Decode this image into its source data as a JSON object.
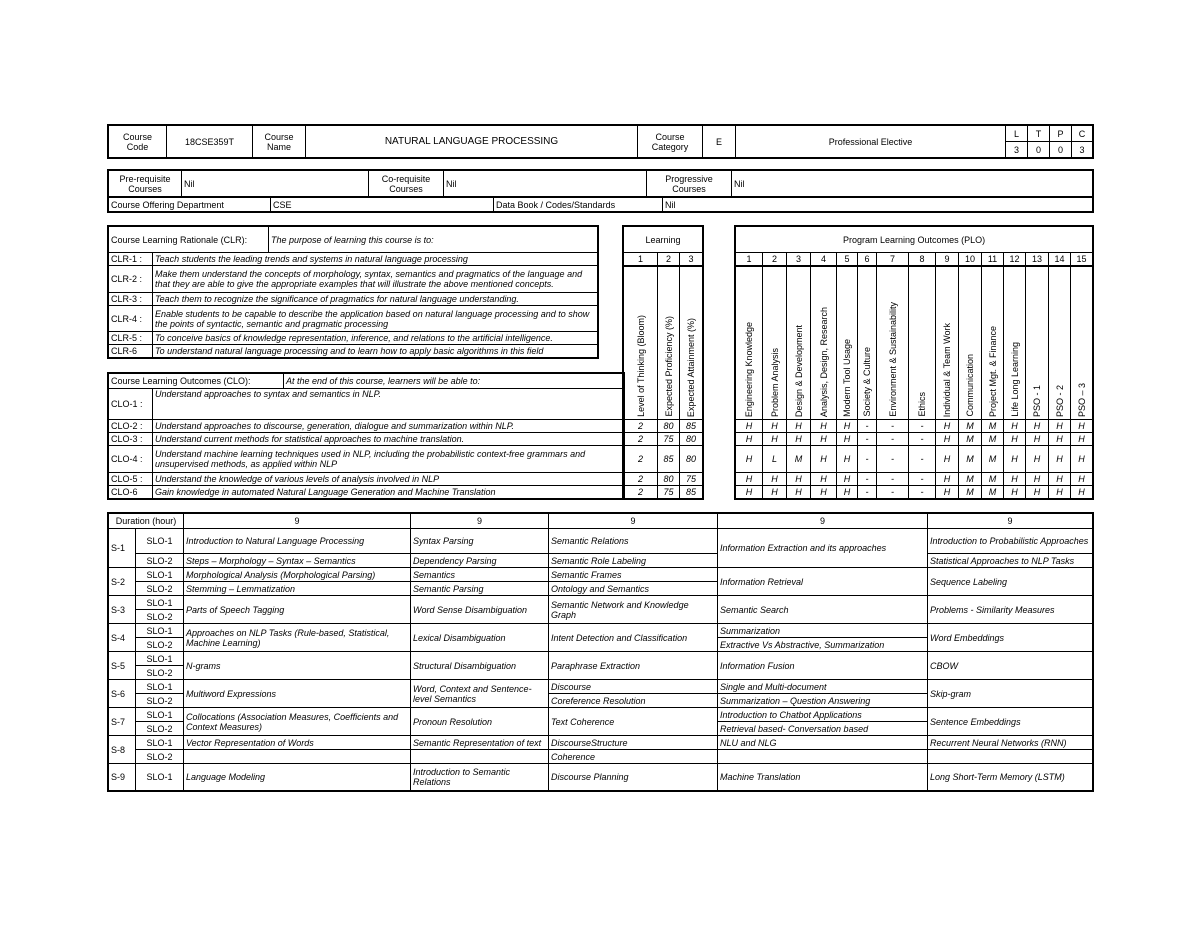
{
  "header": {
    "course_code_label": "Course Code",
    "course_code": "18CSE359T",
    "course_name_label": "Course Name",
    "course_name": "NATURAL LANGUAGE PROCESSING",
    "course_category_label": "Course Category",
    "category_code": "E",
    "category": "Professional Elective",
    "ltpc_labels": [
      "L",
      "T",
      "P",
      "C"
    ],
    "ltpc_values": [
      "3",
      "0",
      "0",
      "3"
    ]
  },
  "prereq": {
    "pre_label": "Pre-requisite Courses",
    "pre_value": "Nil",
    "co_label": "Co-requisite Courses",
    "co_value": "Nil",
    "prog_label": "Progressive Courses",
    "prog_value": "Nil",
    "dept_label": "Course Offering Department",
    "dept_value": "CSE",
    "databook_label": "Data Book / Codes/Standards",
    "databook_value": "Nil"
  },
  "clr": {
    "heading": "Course Learning Rationale (CLR):",
    "intro": "The purpose of learning this course is to:",
    "items": [
      {
        "label": "CLR-1 :",
        "text": "Teach students the leading trends and systems in natural language processing"
      },
      {
        "label": "CLR-2 :",
        "text": "Make them understand the concepts of morphology, syntax, semantics and pragmatics of the language and that they are able to give the appropriate examples that will illustrate the above mentioned concepts."
      },
      {
        "label": "CLR-3 :",
        "text": "Teach them to recognize the significance of pragmatics for natural language understanding."
      },
      {
        "label": "CLR-4 :",
        "text": "Enable students to be capable to describe the application based on natural language processing and to show the points of syntactic, semantic and pragmatic processing"
      },
      {
        "label": "CLR-5 :",
        "text": "To conceive basics of knowledge representation, inference, and relations to the artificial intelligence."
      },
      {
        "label": "CLR-6",
        "text": "To understand natural language processing and to learn how to apply basic algorithms in this field"
      }
    ]
  },
  "clo": {
    "heading": "Course Learning Outcomes (CLO):",
    "intro": "At the end of this course, learners will be able to:",
    "items": [
      {
        "label": "CLO-1 :",
        "text": "Understand approaches to syntax and semantics in NLP."
      },
      {
        "label": "CLO-2 :",
        "text": "Understand approaches to discourse, generation, dialogue and summarization within NLP."
      },
      {
        "label": "CLO-3 :",
        "text": "Understand current methods for statistical approaches to machine translation."
      },
      {
        "label": "CLO-4 :",
        "text": "Understand machine learning techniques used in NLP, including the probabilistic context-free grammars and unsupervised methods, as applied within NLP"
      },
      {
        "label": "CLO-5 :",
        "text": "Understand the knowledge of various levels of analysis involved in NLP"
      },
      {
        "label": "CLO-6",
        "text": "Gain knowledge in automated Natural Language Generation and Machine Translation"
      }
    ]
  },
  "learning": {
    "title": "Learning",
    "numbers": [
      "1",
      "2",
      "3"
    ],
    "headers": [
      "Level of Thinking (Bloom)",
      "Expected Proficiency (%)",
      "Expected Attainment (%)"
    ],
    "values": [
      [
        "2",
        "80",
        "85"
      ],
      [
        "2",
        "75",
        "80"
      ],
      [
        "2",
        "85",
        "80"
      ],
      [
        "2",
        "80",
        "75"
      ],
      [
        "2",
        "75",
        "85"
      ]
    ]
  },
  "plo": {
    "title": "Program Learning Outcomes (PLO)",
    "numbers": [
      "1",
      "2",
      "3",
      "4",
      "5",
      "6",
      "7",
      "8",
      "9",
      "10",
      "11",
      "12",
      "13",
      "14",
      "15"
    ],
    "headers": [
      "Engineering Knowledge",
      "Problem Analysis",
      "Design & Development",
      "Analysis, Design, Research",
      "Modern Tool Usage",
      "Society & Culture",
      "Environment & Sustainability",
      "Ethics",
      "Individual & Team Work",
      "Communication",
      "Project Mgt. & Finance",
      "Life Long Learning",
      "PSO - 1",
      "PSO - 2",
      "PSO – 3"
    ],
    "values": [
      [
        "H",
        "H",
        "H",
        "H",
        "H",
        "-",
        "-",
        "-",
        "H",
        "M",
        "M",
        "H",
        "H",
        "H",
        "H"
      ],
      [
        "H",
        "H",
        "H",
        "H",
        "H",
        "-",
        "-",
        "-",
        "H",
        "M",
        "M",
        "H",
        "H",
        "H",
        "H"
      ],
      [
        "H",
        "L",
        "M",
        "H",
        "H",
        "-",
        "-",
        "-",
        "H",
        "M",
        "M",
        "H",
        "H",
        "H",
        "H"
      ],
      [
        "H",
        "H",
        "H",
        "H",
        "H",
        "-",
        "-",
        "-",
        "H",
        "M",
        "M",
        "H",
        "H",
        "H",
        "H"
      ],
      [
        "H",
        "H",
        "H",
        "H",
        "H",
        "-",
        "-",
        "-",
        "H",
        "M",
        "M",
        "H",
        "H",
        "H",
        "H"
      ]
    ]
  },
  "schedule": {
    "duration_label": "Duration (hour)",
    "durations": [
      "9",
      "9",
      "9",
      "9",
      "9"
    ],
    "sessions": [
      {
        "label": "S-1",
        "slos": [
          "SLO-1",
          "SLO-2"
        ],
        "cells": [
          [
            "Introduction to Natural Language Processing",
            "Steps – Morphology – Syntax – Semantics"
          ],
          [
            "Syntax Parsing",
            "Dependency Parsing"
          ],
          [
            "Semantic Relations",
            "Semantic Role Labeling"
          ],
          "Information Extraction and its approaches",
          [
            "Introduction to Probabilistic Approaches",
            "Statistical Approaches to NLP Tasks"
          ]
        ]
      },
      {
        "label": "S-2",
        "slos": [
          "SLO-1",
          "SLO-2"
        ],
        "cells": [
          [
            "Morphological Analysis (Morphological Parsing)",
            "Stemming – Lemmatization"
          ],
          [
            "Semantics",
            "Semantic Parsing"
          ],
          [
            "Semantic Frames",
            "Ontology and Semantics"
          ],
          "Information Retrieval",
          "Sequence Labeling"
        ]
      },
      {
        "label": "S-3",
        "slos": [
          "SLO-1",
          "SLO-2"
        ],
        "cells": [
          "Parts of Speech Tagging",
          "Word Sense Disambiguation",
          "Semantic Network and Knowledge Graph",
          "Semantic Search",
          "Problems - Similarity Measures"
        ]
      },
      {
        "label": "S-4",
        "slos": [
          "SLO-1",
          "SLO-2"
        ],
        "cells": [
          "Approaches on NLP Tasks (Rule-based, Statistical, Machine Learning)",
          "Lexical Disambiguation",
          "Intent Detection and Classification",
          [
            "Summarization",
            "Extractive Vs Abstractive, Summarization"
          ],
          "Word Embeddings"
        ]
      },
      {
        "label": "S-5",
        "slos": [
          "SLO-1",
          "SLO-2"
        ],
        "cells": [
          "N-grams",
          "Structural Disambiguation",
          "Paraphrase Extraction",
          "Information Fusion",
          "CBOW"
        ]
      },
      {
        "label": "S-6",
        "slos": [
          "SLO-1",
          "SLO-2"
        ],
        "cells": [
          "Multiword Expressions",
          "Word, Context and Sentence-level Semantics",
          [
            "Discourse",
            "Coreference Resolution"
          ],
          [
            "Single and Multi-document",
            "Summarization – Question Answering"
          ],
          "Skip-gram"
        ]
      },
      {
        "label": "S-7",
        "slos": [
          "SLO-1",
          "SLO-2"
        ],
        "cells": [
          "Collocations (Association Measures, Coefficients and Context Measures)",
          "Pronoun Resolution",
          "Text Coherence",
          [
            "Introduction to Chatbot Applications",
            "Retrieval based- Conversation based"
          ],
          "Sentence Embeddings"
        ]
      },
      {
        "label": "S-8",
        "slos": [
          "SLO-1",
          "SLO-2"
        ],
        "cells": [
          [
            "Vector Representation of Words",
            ""
          ],
          [
            "Semantic Representation of text",
            ""
          ],
          [
            "DiscourseStructure",
            "Coherence"
          ],
          [
            "NLU and NLG",
            ""
          ],
          [
            "Recurrent Neural Networks (RNN)",
            ""
          ]
        ]
      },
      {
        "label": "S-9",
        "slos": [
          "SLO-1"
        ],
        "cells": [
          "Language Modeling",
          "Introduction to Semantic Relations",
          "Discourse Planning",
          "Machine Translation",
          "Long Short-Term Memory (LSTM)"
        ]
      }
    ]
  }
}
